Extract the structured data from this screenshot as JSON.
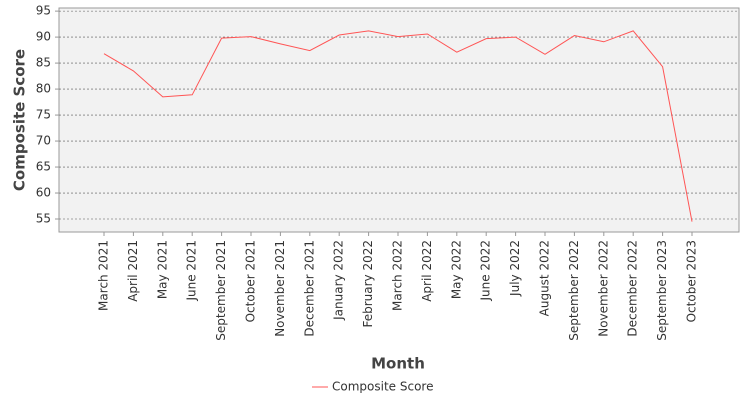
{
  "chart_data": {
    "type": "line",
    "x_label": "Month",
    "y_label": "Composite Score",
    "categories": [
      "March 2021",
      "April 2021",
      "May 2021",
      "June 2021",
      "September 2021",
      "October 2021",
      "November 2021",
      "December 2021",
      "January 2022",
      "February 2022",
      "March 2022",
      "April 2022",
      "May 2022",
      "June 2022",
      "July 2022",
      "August 2022",
      "September 2022",
      "November 2022",
      "December 2022",
      "September 2023",
      "October 2023"
    ],
    "series": [
      {
        "name": "Composite Score",
        "color": "#ff5555",
        "values": [
          86.8,
          83.5,
          78.5,
          78.9,
          89.8,
          90.1,
          88.7,
          87.4,
          90.4,
          91.2,
          90.1,
          90.6,
          87.1,
          89.7,
          90.0,
          86.7,
          90.3,
          89.1,
          91.2,
          84.3,
          54.5
        ]
      }
    ],
    "ylim": [
      52.5,
      95.6
    ],
    "yticks": [
      55,
      60,
      65,
      70,
      75,
      80,
      85,
      90,
      95
    ],
    "grid": true
  }
}
